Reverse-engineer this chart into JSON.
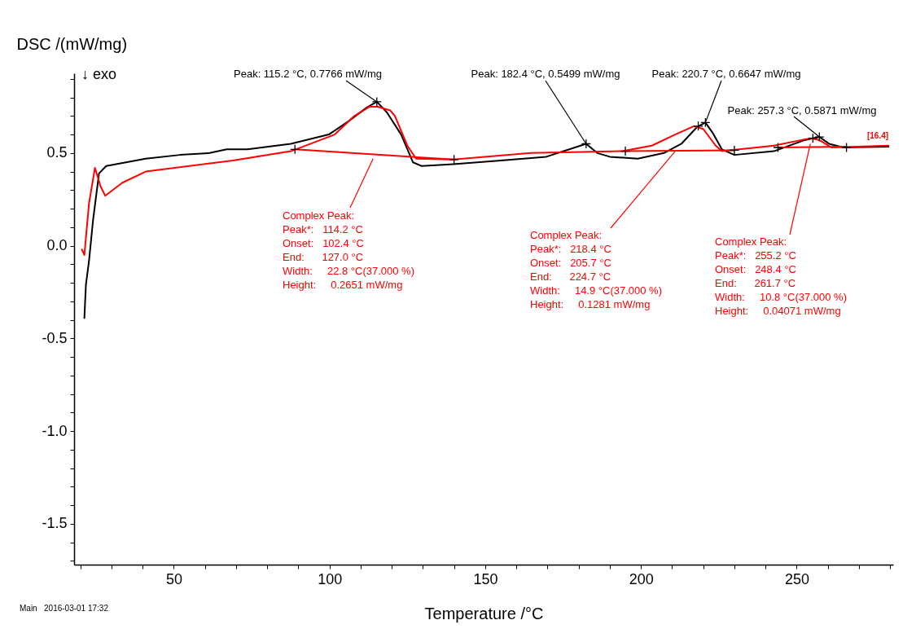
{
  "chart_data": {
    "type": "line",
    "xlabel": "Temperature /°C",
    "ylabel": "DSC /(mW/mg)",
    "xlim": [
      18,
      281
    ],
    "ylim": [
      -1.72,
      0.93
    ],
    "xticks": [
      {
        "value": 20,
        "label": null
      },
      {
        "value": 30,
        "label": null
      },
      {
        "value": 40,
        "label": null
      },
      50,
      {
        "value": 60,
        "label": null
      },
      {
        "value": 70,
        "label": null
      },
      {
        "value": 80,
        "label": null
      },
      {
        "value": 90,
        "label": null
      },
      100,
      {
        "value": 110,
        "label": null
      },
      {
        "value": 120,
        "label": null
      },
      {
        "value": 130,
        "label": null
      },
      {
        "value": 140,
        "label": null
      },
      150,
      {
        "value": 160,
        "label": null
      },
      {
        "value": 170,
        "label": null
      },
      {
        "value": 180,
        "label": null
      },
      {
        "value": 190,
        "label": null
      },
      200,
      {
        "value": 210,
        "label": null
      },
      {
        "value": 220,
        "label": null
      },
      {
        "value": 230,
        "label": null
      },
      {
        "value": 240,
        "label": null
      },
      250,
      {
        "value": 260,
        "label": null
      },
      {
        "value": 270,
        "label": null
      },
      {
        "value": 280,
        "label": null
      }
    ],
    "yticks": [
      {
        "value": -1.7,
        "label": null
      },
      {
        "value": -1.6,
        "label": null
      },
      -1.5,
      {
        "value": -1.4,
        "label": null
      },
      {
        "value": -1.3,
        "label": null
      },
      {
        "value": -1.2,
        "label": null
      },
      {
        "value": -1.1,
        "label": null
      },
      {
        "value": -1,
        "label": "-1.0"
      },
      {
        "value": -0.9,
        "label": null
      },
      {
        "value": -0.8,
        "label": null
      },
      {
        "value": -0.7,
        "label": null
      },
      {
        "value": -0.6,
        "label": null
      },
      -0.5,
      {
        "value": -0.4,
        "label": null
      },
      {
        "value": -0.3,
        "label": null
      },
      {
        "value": -0.2,
        "label": null
      },
      {
        "value": -0.1,
        "label": null
      },
      {
        "value": 0,
        "label": "0.0"
      },
      {
        "value": 0.1,
        "label": null
      },
      {
        "value": 0.2,
        "label": null
      },
      {
        "value": 0.3,
        "label": null
      },
      {
        "value": 0.4,
        "label": null
      },
      0.5,
      {
        "value": 0.6,
        "label": null
      },
      {
        "value": 0.7,
        "label": null
      },
      {
        "value": 0.8,
        "label": null
      },
      {
        "value": 0.9,
        "label": null
      }
    ],
    "line_style": "solid",
    "series": [
      {
        "color": "#000000",
        "x": [
          21.3,
          21.8,
          22.8,
          24.1,
          26,
          28.3,
          41,
          52,
          61.5,
          67,
          73.7,
          87.6,
          99.8,
          106,
          111.9,
          115.2,
          118.4,
          123,
          126.8,
          129.6,
          139.8,
          155,
          169.6,
          177,
          182.4,
          186,
          190,
          199,
          207.4,
          213,
          218,
          220.7,
          223,
          226,
          230,
          242.7,
          252.6,
          257.3,
          260.4,
          265,
          279.5
        ],
        "values": [
          -0.39,
          -0.21,
          -0.08,
          0.14,
          0.39,
          0.43,
          0.47,
          0.49,
          0.5,
          0.52,
          0.52,
          0.55,
          0.6,
          0.67,
          0.745,
          0.7766,
          0.72,
          0.6,
          0.45,
          0.43,
          0.44,
          0.46,
          0.48,
          0.52,
          0.5499,
          0.5,
          0.48,
          0.47,
          0.5,
          0.55,
          0.64,
          0.6647,
          0.61,
          0.52,
          0.49,
          0.51,
          0.57,
          0.5871,
          0.55,
          0.53,
          0.535
        ]
      },
      {
        "color": "#ff0000",
        "x": [
          20.5,
          21.3,
          22.8,
          24.7,
          26.5,
          28,
          33.5,
          41,
          69,
          87.6,
          101.7,
          108,
          112.9,
          115.5,
          119.5,
          121,
          125,
          127.8,
          139.8,
          164.6,
          194,
          203.5,
          211,
          217,
          220,
          224,
          226,
          242.7,
          254.4,
          257.3,
          261.2,
          279.5
        ],
        "values": [
          -0.02,
          -0.05,
          0.23,
          0.42,
          0.32,
          0.27,
          0.34,
          0.4,
          0.46,
          0.51,
          0.6,
          0.7,
          0.75,
          0.75,
          0.73,
          0.7,
          0.54,
          0.47,
          0.465,
          0.5,
          0.51,
          0.54,
          0.6,
          0.645,
          0.63,
          0.54,
          0.51,
          0.54,
          0.58,
          0.57,
          0.53,
          0.54
        ]
      },
      {
        "color": "#ff0000",
        "x": [
          88.9,
          140,
          null,
          194,
          230,
          null,
          244,
          266
        ],
        "values": [
          0.52,
          0.465,
          null,
          0.51,
          0.515,
          null,
          0.53,
          0.535
        ]
      },
      {
        "type": "scatter",
        "marker": "cross",
        "color": "#000000",
        "x": [
          88.9,
          115.2,
          140,
          182.4,
          195,
          218.4,
          220.7,
          230,
          244,
          255.2,
          257.3,
          266
        ],
        "values": [
          0.52,
          0.7766,
          0.465,
          0.5499,
          0.51,
          0.645,
          0.6647,
          0.515,
          0.53,
          0.58,
          0.5871,
          0.53
        ]
      }
    ],
    "annotations": [
      "↓ exo",
      {
        "text": "Peak: 115.2 °C, 0.7766 mW/mg",
        "x": 115.2,
        "y": 0.7766
      },
      {
        "text": "Peak: 182.4 °C, 0.5499 mW/mg",
        "x": 182.4,
        "y": 0.5499
      },
      {
        "text": "Peak: 220.7 °C, 0.6647 mW/mg",
        "x": 220.7,
        "y": 0.6647
      },
      {
        "text": "Peak: 257.3 °C, 0.5871 mW/mg",
        "x": 257.3,
        "y": 0.5871
      },
      {
        "text": "Complex Peak:\nPeak*:   114.2 °C\nOnset:   102.4 °C\nEnd:      127.0 °C\nWidth:     22.8 °C(37.000 %)\nHeight:     0.2651 mW/mg",
        "x": 114,
        "y": 0.47
      },
      {
        "text": "Complex Peak:\nPeak*:   218.4 °C\nOnset:   205.7 °C\nEnd:      224.7 °C\nWidth:     14.9 °C(37.000 %)\nHeight:     0.1281 mW/mg",
        "x": 211,
        "y": 0.51
      },
      {
        "text": "Complex Peak:\nPeak*:   255.2 °C\nOnset:   248.4 °C\nEnd:      261.7 °C\nWidth:     10.8 °C(37.000 %)\nHeight:     0.04071 mW/mg",
        "x": 254.4,
        "y": 0.55
      },
      "[16.4]",
      "Main   2016-03-01 17:32"
    ]
  }
}
